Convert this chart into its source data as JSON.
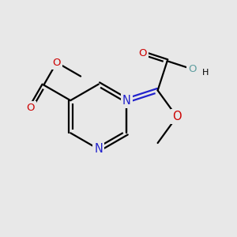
{
  "bg_color": "#e8e8e8",
  "bond_color": "#000000",
  "N_color": "#2222cc",
  "O_color": "#cc0000",
  "OH_color": "#5f9ea0",
  "lw": 1.6,
  "fs": 8.5,
  "figsize": [
    3.0,
    3.0
  ],
  "dpi": 100,
  "xlim": [
    -1.3,
    1.3
  ],
  "ylim": [
    -1.0,
    1.0
  ],
  "bl": 0.36
}
